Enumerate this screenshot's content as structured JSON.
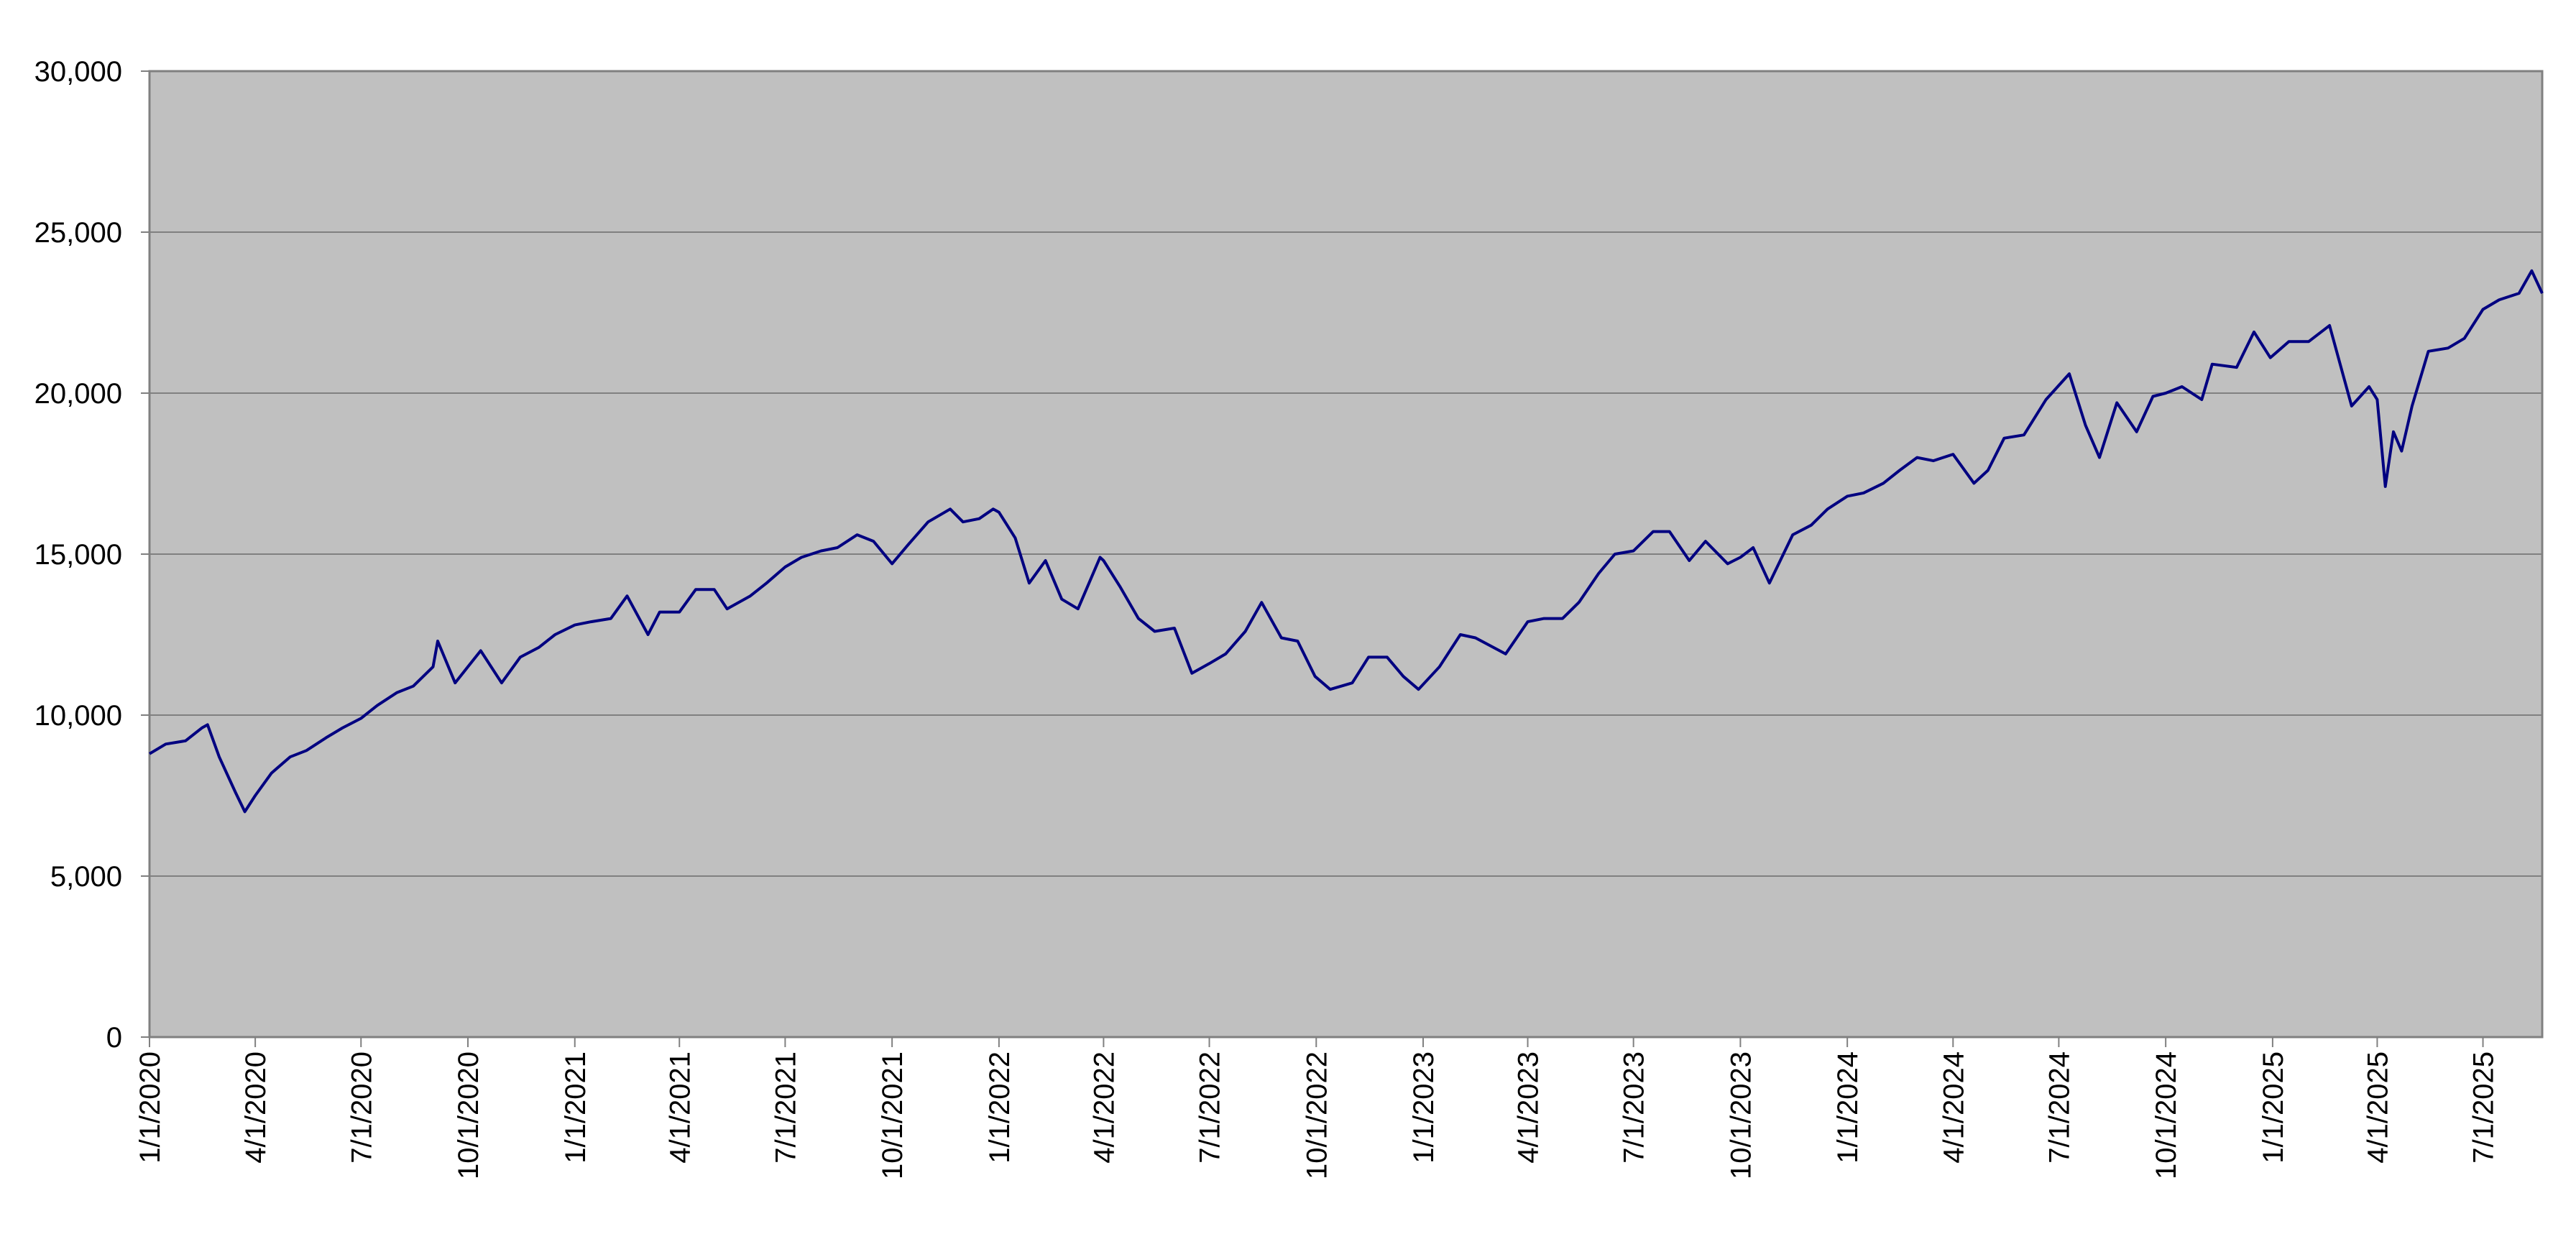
{
  "chart_data": {
    "type": "line",
    "color": "#000080",
    "background": "#c0c0c0",
    "grid": true,
    "x": [
      "1/1/2020",
      "1/15/2020",
      "2/1/2020",
      "2/15/2020",
      "2/20/2020",
      "3/1/2020",
      "3/15/2020",
      "3/23/2020",
      "4/1/2020",
      "4/15/2020",
      "5/1/2020",
      "5/15/2020",
      "6/1/2020",
      "6/15/2020",
      "7/1/2020",
      "7/15/2020",
      "8/1/2020",
      "8/15/2020",
      "9/1/2020",
      "9/5/2020",
      "9/20/2020",
      "10/1/2020",
      "10/12/2020",
      "10/30/2020",
      "11/15/2020",
      "12/1/2020",
      "12/15/2020",
      "1/1/2021",
      "1/15/2021",
      "2/1/2021",
      "2/15/2021",
      "3/5/2021",
      "3/15/2021",
      "4/1/2021",
      "4/15/2021",
      "5/1/2021",
      "5/12/2021",
      "6/1/2021",
      "6/15/2021",
      "7/1/2021",
      "7/15/2021",
      "8/1/2021",
      "8/15/2021",
      "9/1/2021",
      "9/15/2021",
      "10/1/2021",
      "10/15/2021",
      "11/1/2021",
      "11/20/2021",
      "12/1/2021",
      "12/15/2021",
      "12/27/2021",
      "1/1/2022",
      "1/15/2022",
      "1/27/2022",
      "2/10/2022",
      "2/24/2022",
      "3/10/2022",
      "3/29/2022",
      "4/1/2022",
      "4/15/2022",
      "5/1/2022",
      "5/15/2022",
      "6/1/2022",
      "6/16/2022",
      "7/1/2022",
      "7/15/2022",
      "8/1/2022",
      "8/15/2022",
      "9/1/2022",
      "9/15/2022",
      "9/30/2022",
      "10/13/2022",
      "11/1/2022",
      "11/15/2022",
      "12/1/2022",
      "12/15/2022",
      "12/28/2022",
      "1/15/2023",
      "2/2/2023",
      "2/15/2023",
      "3/13/2023",
      "4/1/2023",
      "4/15/2023",
      "5/1/2023",
      "5/15/2023",
      "6/1/2023",
      "6/15/2023",
      "7/1/2023",
      "7/18/2023",
      "8/1/2023",
      "8/18/2023",
      "9/1/2023",
      "9/20/2023",
      "10/1/2023",
      "10/12/2023",
      "10/26/2023",
      "11/15/2023",
      "12/1/2023",
      "12/15/2023",
      "1/1/2024",
      "1/15/2024",
      "2/1/2024",
      "2/15/2024",
      "3/1/2024",
      "3/15/2024",
      "4/1/2024",
      "4/19/2024",
      "5/1/2024",
      "5/15/2024",
      "6/1/2024",
      "6/20/2024",
      "7/10/2024",
      "7/24/2024",
      "8/5/2024",
      "8/20/2024",
      "9/6/2024",
      "9/20/2024",
      "10/1/2024",
      "10/15/2024",
      "11/1/2024",
      "11/10/2024",
      "12/1/2024",
      "12/16/2024",
      "12/30/2024",
      "1/15/2025",
      "2/1/2025",
      "2/19/2025",
      "3/10/2025",
      "3/25/2025",
      "4/1/2025",
      "4/8/2025",
      "4/15/2025",
      "4/22/2025",
      "5/1/2025",
      "5/15/2025",
      "6/1/2025",
      "6/15/2025",
      "7/1/2025",
      "7/15/2025",
      "8/1/2025",
      "8/12/2025",
      "8/21/2025"
    ],
    "values": [
      8800,
      9100,
      9200,
      9600,
      9700,
      8700,
      7600,
      7000,
      7500,
      8200,
      8700,
      8900,
      9300,
      9600,
      9900,
      10300,
      10700,
      10900,
      11500,
      12300,
      11000,
      11500,
      12000,
      11000,
      11800,
      12100,
      12500,
      12800,
      12900,
      13000,
      13700,
      12500,
      13200,
      13200,
      13900,
      13900,
      13300,
      13700,
      14100,
      14600,
      14900,
      15100,
      15200,
      15600,
      15400,
      14700,
      15300,
      16000,
      16400,
      16000,
      16100,
      16400,
      16300,
      15500,
      14100,
      14800,
      13600,
      13300,
      14900,
      14800,
      14000,
      13000,
      12600,
      12700,
      11300,
      11600,
      11900,
      12600,
      13500,
      12400,
      12300,
      11200,
      10800,
      11000,
      11800,
      11800,
      11200,
      10800,
      11500,
      12500,
      12400,
      11900,
      12900,
      13000,
      13000,
      13500,
      14400,
      15000,
      15100,
      15700,
      15700,
      14800,
      15400,
      14700,
      14900,
      15200,
      14100,
      15600,
      15900,
      16400,
      16800,
      16900,
      17200,
      17600,
      18000,
      17900,
      18100,
      17200,
      17600,
      18600,
      18700,
      19800,
      20600,
      19000,
      18000,
      19700,
      18800,
      19900,
      20000,
      20200,
      19800,
      20900,
      20800,
      21900,
      21100,
      21600,
      21600,
      22100,
      19600,
      20200,
      19800,
      17100,
      18800,
      18200,
      19600,
      21300,
      21400,
      21700,
      22600,
      22900,
      23100,
      23800,
      23100
    ],
    "xlim": [
      "1/1/2020",
      "8/21/2025"
    ],
    "xticks": [
      "1/1/2020",
      "4/1/2020",
      "7/1/2020",
      "10/1/2020",
      "1/1/2021",
      "4/1/2021",
      "7/1/2021",
      "10/1/2021",
      "1/1/2022",
      "4/1/2022",
      "7/1/2022",
      "10/1/2022",
      "1/1/2023",
      "4/1/2023",
      "7/1/2023",
      "10/1/2023",
      "1/1/2024",
      "4/1/2024",
      "7/1/2024",
      "10/1/2024",
      "1/1/2025",
      "4/1/2025",
      "7/1/2025"
    ],
    "ylim": [
      0,
      30000
    ],
    "yticks": [
      0,
      {
        "value": 5000,
        "label": "5,000"
      },
      {
        "value": 10000,
        "label": "10,000"
      },
      {
        "value": 15000,
        "label": "15,000"
      },
      {
        "value": 20000,
        "label": "20,000"
      },
      {
        "value": 25000,
        "label": "25,000"
      },
      {
        "value": 30000,
        "label": "30,000"
      }
    ]
  }
}
